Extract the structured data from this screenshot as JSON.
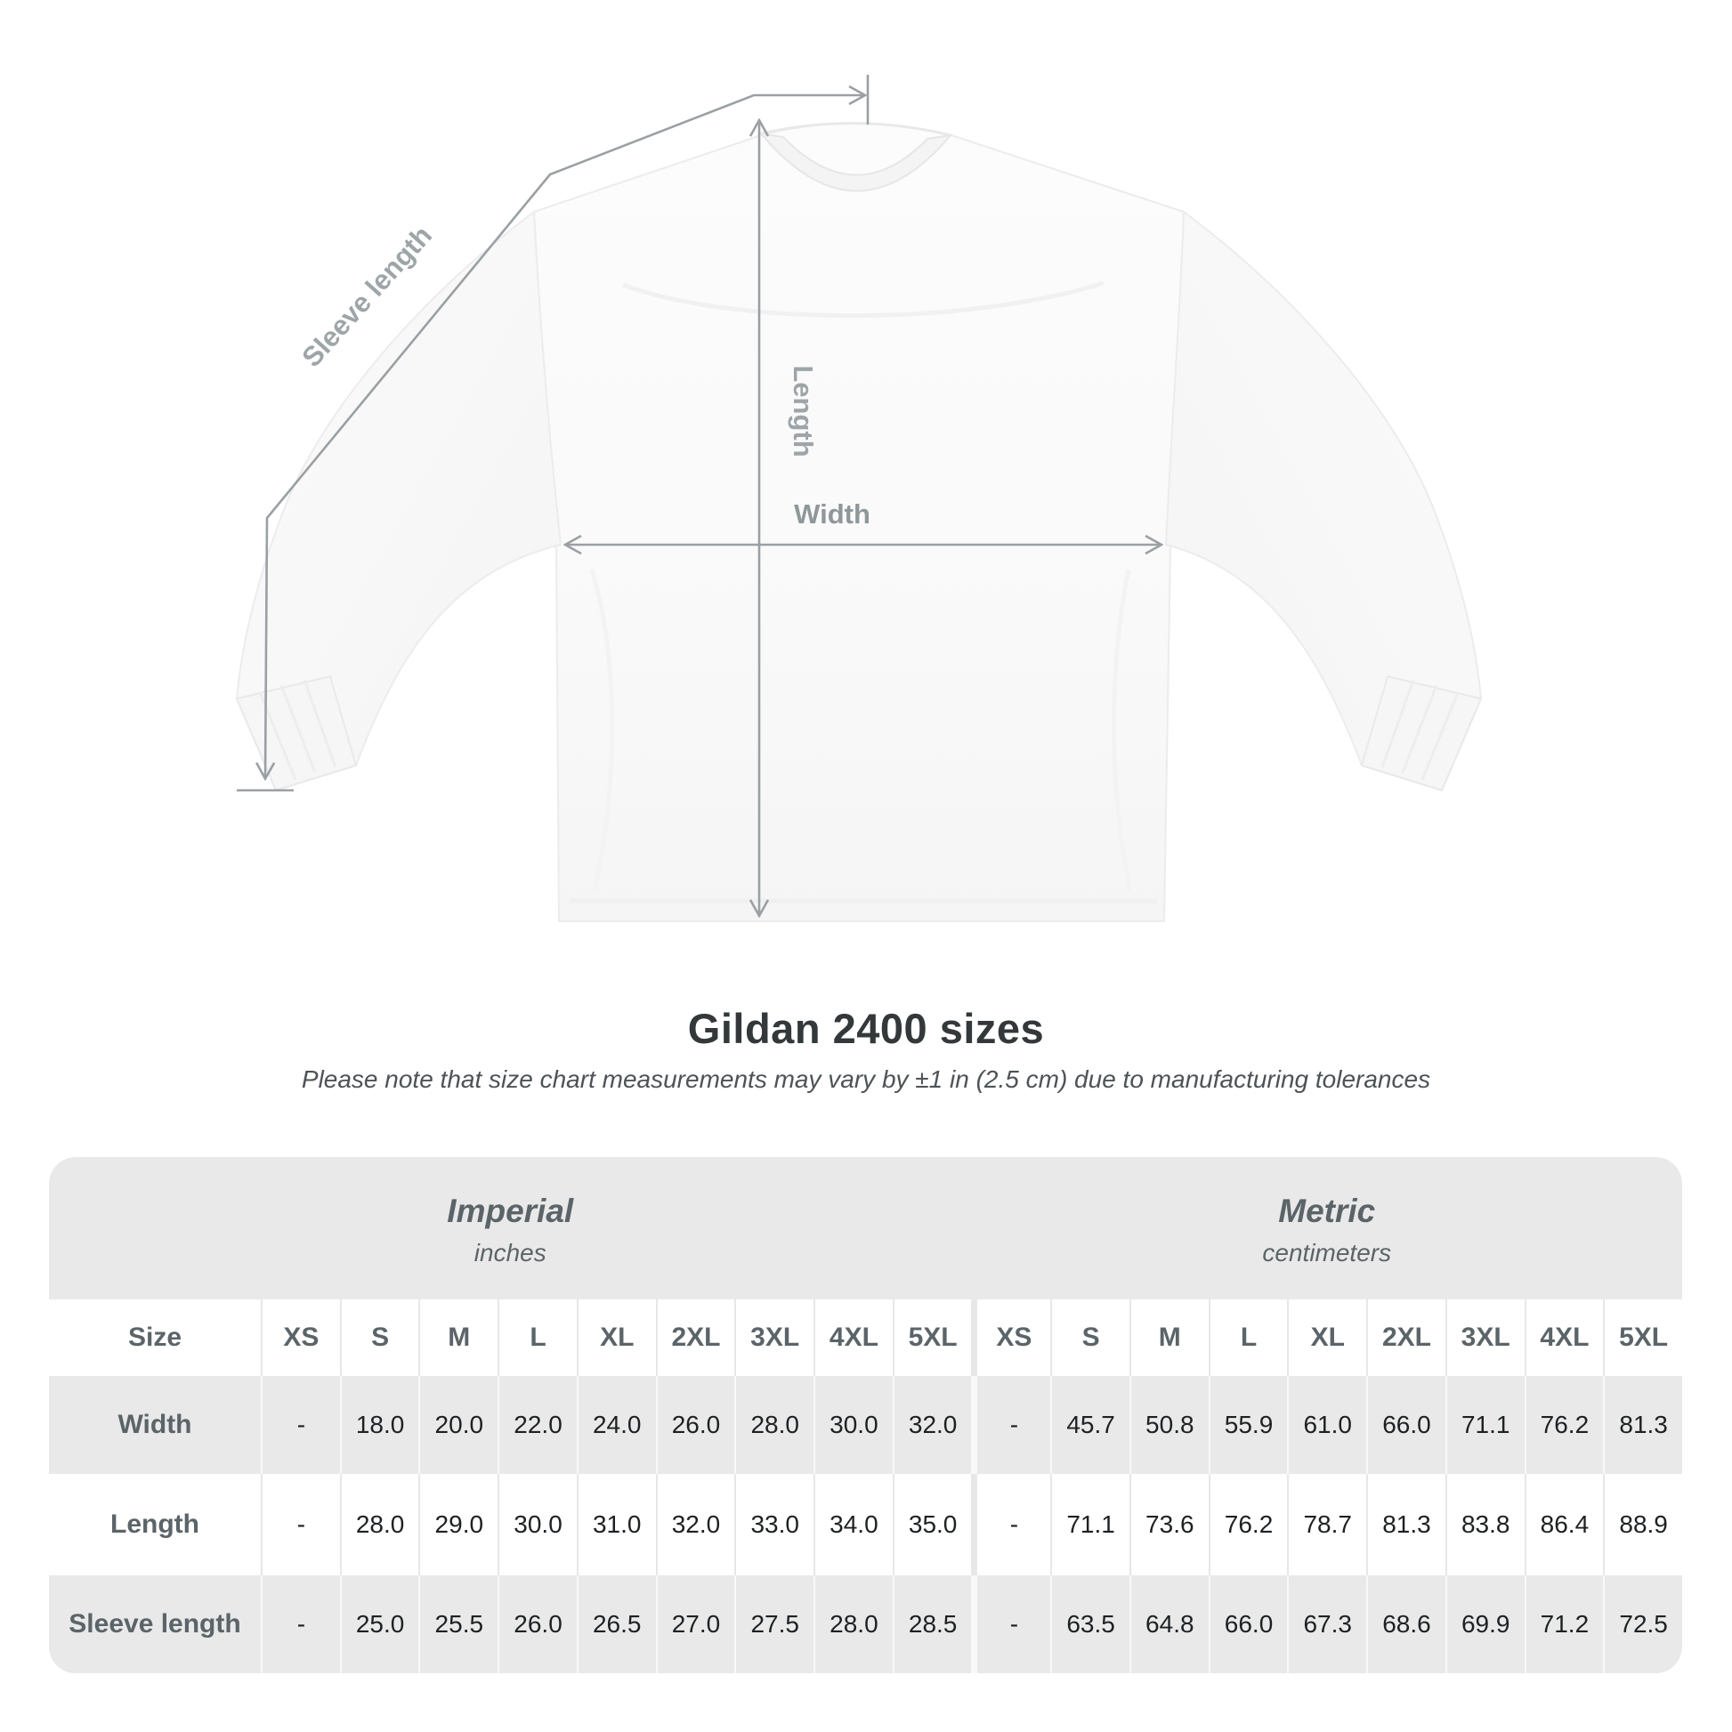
{
  "diagram": {
    "sleeve_length_label": "Sleeve length",
    "length_label": "Length",
    "width_label": "Width"
  },
  "header": {
    "title": "Gildan 2400 sizes",
    "subtitle": "Please note that size chart measurements may vary by ±1 in (2.5 cm) due to manufacturing tolerances"
  },
  "chart_data": {
    "type": "table",
    "title": "Gildan 2400 sizes",
    "note": "Please note that size chart measurements may vary by ±1 in (2.5 cm) due to manufacturing tolerances",
    "unit_groups": [
      {
        "label": "Imperial",
        "unit": "inches"
      },
      {
        "label": "Metric",
        "unit": "centimeters"
      }
    ],
    "size_column_header": "Size",
    "sizes": [
      "XS",
      "S",
      "M",
      "L",
      "XL",
      "2XL",
      "3XL",
      "4XL",
      "5XL"
    ],
    "rows": [
      {
        "label": "Width",
        "imperial": [
          "-",
          "18.0",
          "20.0",
          "22.0",
          "24.0",
          "26.0",
          "28.0",
          "30.0",
          "32.0"
        ],
        "metric": [
          "-",
          "45.7",
          "50.8",
          "55.9",
          "61.0",
          "66.0",
          "71.1",
          "76.2",
          "81.3"
        ]
      },
      {
        "label": "Length",
        "imperial": [
          "-",
          "28.0",
          "29.0",
          "30.0",
          "31.0",
          "32.0",
          "33.0",
          "34.0",
          "35.0"
        ],
        "metric": [
          "-",
          "71.1",
          "73.6",
          "76.2",
          "78.7",
          "81.3",
          "83.8",
          "86.4",
          "88.9"
        ]
      },
      {
        "label": "Sleeve length",
        "imperial": [
          "-",
          "25.0",
          "25.5",
          "26.0",
          "26.5",
          "27.0",
          "27.5",
          "28.0",
          "28.5"
        ],
        "metric": [
          "-",
          "63.5",
          "64.8",
          "66.0",
          "67.3",
          "68.6",
          "69.9",
          "71.2",
          "72.5"
        ]
      }
    ]
  },
  "colors": {
    "table_band": "#e9e9e9",
    "table_header_text": "#5b6468",
    "value_text": "#1e2123",
    "title_text": "#33383b",
    "annotation_line": "#9aa0a3",
    "annotation_label": "#9ea5a8",
    "shirt_fill": "#fbfbfb",
    "shirt_edge": "#ececec"
  }
}
